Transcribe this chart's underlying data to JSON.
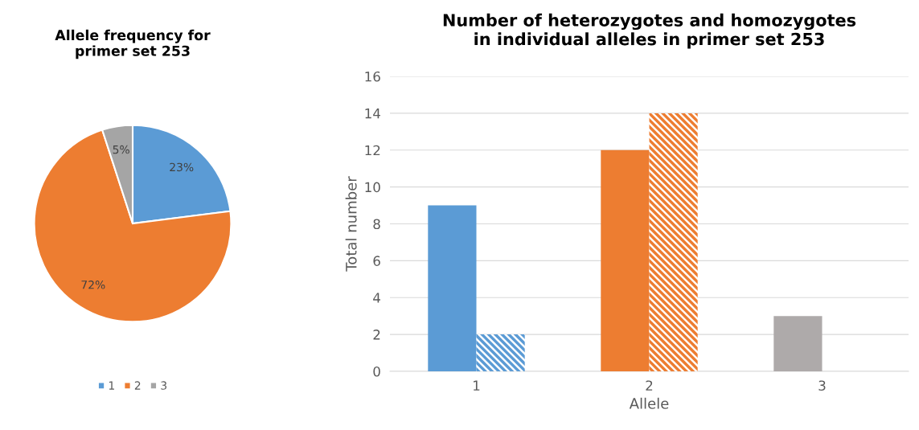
{
  "chart_data": [
    {
      "type": "pie",
      "title": "Allele frequency for\nprimer set 253",
      "categories": [
        "1",
        "2",
        "3"
      ],
      "values": [
        23,
        72,
        5
      ],
      "colors": [
        "#5b9bd5",
        "#ed7d31",
        "#a5a5a5"
      ],
      "value_labels": [
        "23%",
        "72%",
        "5%"
      ],
      "legend": "bottom"
    },
    {
      "type": "bar",
      "title": "Number of heterozygotes and homozygotes\nin individual alleles in primer set 253",
      "xlabel": "Allele",
      "ylabel": "Total number",
      "categories": [
        "1",
        "2",
        "3"
      ],
      "series": [
        {
          "colors": [
            "#5b9bd5",
            "#ed7d31",
            "#aeaaaa"
          ],
          "values": [
            9,
            12,
            3
          ]
        },
        {
          "colors": [
            "#5b9bd5",
            "#ed7d31",
            "#aeaaaa"
          ],
          "values": [
            2,
            14,
            null
          ]
        }
      ],
      "ylim": [
        0,
        16
      ],
      "yticks": [
        0,
        2,
        4,
        6,
        8,
        10,
        12,
        14,
        16
      ],
      "grid": "y"
    }
  ]
}
